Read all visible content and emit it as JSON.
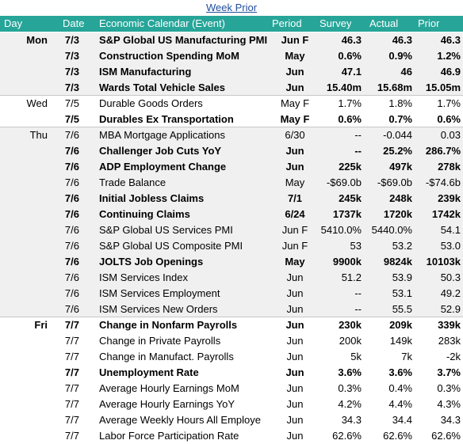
{
  "title": "Week Prior",
  "header": [
    "Day",
    "Date",
    "Economic Calendar (Event)",
    "Period",
    "Survey",
    "Actual",
    "Prior"
  ],
  "groups": [
    {
      "day": "Mon",
      "day_bold": true,
      "shaded": true,
      "rows": [
        {
          "date": "7/3",
          "event": "S&P Global US Manufacturing PMI",
          "period": "Jun F",
          "survey": "46.3",
          "actual": "46.3",
          "prior": "46.3",
          "bold": true
        },
        {
          "date": "7/3",
          "event": "Construction Spending MoM",
          "period": "May",
          "survey": "0.6%",
          "actual": "0.9%",
          "prior": "1.2%",
          "bold": true
        },
        {
          "date": "7/3",
          "event": "ISM Manufacturing",
          "period": "Jun",
          "survey": "47.1",
          "actual": "46",
          "prior": "46.9",
          "bold": true
        },
        {
          "date": "7/3",
          "event": "Wards Total Vehicle Sales",
          "period": "Jun",
          "survey": "15.40m",
          "actual": "15.68m",
          "prior": "15.05m",
          "bold": true
        }
      ]
    },
    {
      "day": "Wed",
      "day_bold": false,
      "shaded": false,
      "rows": [
        {
          "date": "7/5",
          "event": "Durable Goods Orders",
          "period": "May F",
          "survey": "1.7%",
          "actual": "1.8%",
          "prior": "1.7%",
          "bold": false
        },
        {
          "date": "7/5",
          "event": "Durables Ex Transportation",
          "period": "May F",
          "survey": "0.6%",
          "actual": "0.7%",
          "prior": "0.6%",
          "bold": true
        }
      ]
    },
    {
      "day": "Thu",
      "day_bold": false,
      "shaded": true,
      "rows": [
        {
          "date": "7/6",
          "event": "MBA Mortgage Applications",
          "period": "6/30",
          "survey": "--",
          "actual": "-0.044",
          "prior": "0.03",
          "bold": false
        },
        {
          "date": "7/6",
          "event": "Challenger Job Cuts YoY",
          "period": "Jun",
          "survey": "--",
          "actual": "25.2%",
          "prior": "286.7%",
          "bold": true
        },
        {
          "date": "7/6",
          "event": "ADP Employment Change",
          "period": "Jun",
          "survey": "225k",
          "actual": "497k",
          "prior": "278k",
          "bold": true
        },
        {
          "date": "7/6",
          "event": "Trade Balance",
          "period": "May",
          "survey": "-$69.0b",
          "actual": "-$69.0b",
          "prior": "-$74.6b",
          "bold": false
        },
        {
          "date": "7/6",
          "event": "Initial Jobless Claims",
          "period": "7/1",
          "survey": "245k",
          "actual": "248k",
          "prior": "239k",
          "bold": true
        },
        {
          "date": "7/6",
          "event": "Continuing Claims",
          "period": "6/24",
          "survey": "1737k",
          "actual": "1720k",
          "prior": "1742k",
          "bold": true
        },
        {
          "date": "7/6",
          "event": "S&P Global US Services PMI",
          "period": "Jun F",
          "survey": "5410.0%",
          "actual": "5440.0%",
          "prior": "54.1",
          "bold": false
        },
        {
          "date": "7/6",
          "event": "S&P Global US Composite PMI",
          "period": "Jun F",
          "survey": "53",
          "actual": "53.2",
          "prior": "53.0",
          "bold": false
        },
        {
          "date": "7/6",
          "event": "JOLTS Job Openings",
          "period": "May",
          "survey": "9900k",
          "actual": "9824k",
          "prior": "10103k",
          "bold": true
        },
        {
          "date": "7/6",
          "event": "ISM Services Index",
          "period": "Jun",
          "survey": "51.2",
          "actual": "53.9",
          "prior": "50.3",
          "bold": false
        },
        {
          "date": "7/6",
          "event": "ISM Services Employment",
          "period": "Jun",
          "survey": "--",
          "actual": "53.1",
          "prior": "49.2",
          "bold": false
        },
        {
          "date": "7/6",
          "event": "ISM Services New Orders",
          "period": "Jun",
          "survey": "--",
          "actual": "55.5",
          "prior": "52.9",
          "bold": false
        }
      ]
    },
    {
      "day": "Fri",
      "day_bold": true,
      "shaded": false,
      "rows": [
        {
          "date": "7/7",
          "event": "Change in Nonfarm Payrolls",
          "period": "Jun",
          "survey": "230k",
          "actual": "209k",
          "prior": "339k",
          "bold": true
        },
        {
          "date": "7/7",
          "event": "Change in Private Payrolls",
          "period": "Jun",
          "survey": "200k",
          "actual": "149k",
          "prior": "283k",
          "bold": false
        },
        {
          "date": "7/7",
          "event": "Change in Manufact. Payrolls",
          "period": "Jun",
          "survey": "5k",
          "actual": "7k",
          "prior": "-2k",
          "bold": false
        },
        {
          "date": "7/7",
          "event": "Unemployment Rate",
          "period": "Jun",
          "survey": "3.6%",
          "actual": "3.6%",
          "prior": "3.7%",
          "bold": true
        },
        {
          "date": "7/7",
          "event": "Average Hourly Earnings MoM",
          "period": "Jun",
          "survey": "0.3%",
          "actual": "0.4%",
          "prior": "0.3%",
          "bold": false
        },
        {
          "date": "7/7",
          "event": "Average Hourly Earnings YoY",
          "period": "Jun",
          "survey": "4.2%",
          "actual": "4.4%",
          "prior": "4.3%",
          "bold": false
        },
        {
          "date": "7/7",
          "event": "Average Weekly Hours All Employe",
          "period": "Jun",
          "survey": "34.3",
          "actual": "34.4",
          "prior": "34.3",
          "bold": false
        },
        {
          "date": "7/7",
          "event": "Labor Force Participation Rate",
          "period": "Jun",
          "survey": "62.6%",
          "actual": "62.6%",
          "prior": "62.6%",
          "bold": false
        }
      ]
    }
  ]
}
